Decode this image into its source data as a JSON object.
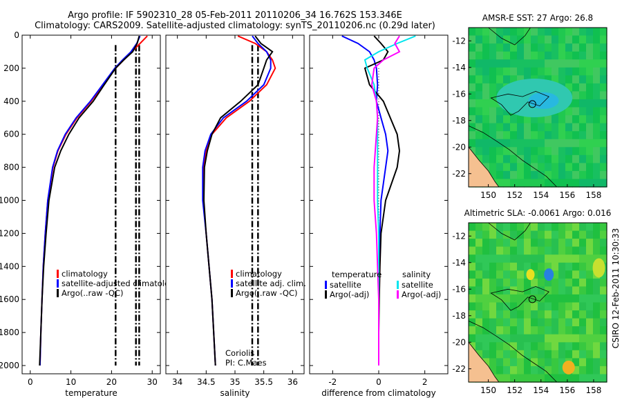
{
  "header": {
    "title_line1": "Argo profile: IF 5902310_28 05-Feb-2011 20110206_34 16.762S 153.346E",
    "title_line2": "Climatology: CARS2009. Satellite-adjusted climatology: synTS_20110206.nc (0.29d later)"
  },
  "colors": {
    "climatology": "#ff0000",
    "satellite": "#0000ff",
    "argo": "#000000",
    "salinity_satellite": "#00e5ee",
    "salinity_argo": "#ff00ff",
    "land": "#f5c090"
  },
  "chart_data": [
    {
      "type": "line",
      "panel": "temperature",
      "xlabel": "temperature",
      "ylabel": "",
      "xlim": [
        -2,
        32
      ],
      "ylim": [
        2050,
        0
      ],
      "xticks": [
        0,
        10,
        20,
        30
      ],
      "yticks": [
        0,
        200,
        400,
        600,
        800,
        1000,
        1200,
        1400,
        1600,
        1800,
        2000
      ],
      "depth": [
        5,
        50,
        100,
        150,
        200,
        300,
        400,
        500,
        600,
        700,
        800,
        1000,
        1200,
        1400,
        1600,
        1800,
        2000
      ],
      "series": [
        {
          "name": "climatology",
          "color": "#ff0000",
          "values": [
            28.8,
            27.0,
            25.0,
            23.0,
            21.0,
            18.0,
            15.0,
            11.5,
            8.8,
            6.8,
            5.6,
            4.3,
            3.7,
            3.2,
            2.9,
            2.6,
            2.4
          ]
        },
        {
          "name": "satellite-adjusted climatology",
          "color": "#0000ff",
          "values": [
            27.0,
            26.2,
            24.8,
            22.7,
            20.8,
            17.8,
            14.8,
            11.3,
            8.6,
            6.7,
            5.5,
            4.3,
            3.7,
            3.2,
            2.9,
            2.6,
            2.4
          ]
        },
        {
          "name": "Argo(..raw -QC)",
          "color": "#000000",
          "values": [
            26.8,
            26.3,
            25.2,
            23.0,
            21.0,
            18.2,
            15.5,
            12.0,
            9.5,
            7.5,
            6.0,
            4.6,
            3.9,
            3.3,
            2.9,
            2.6,
            2.3
          ]
        }
      ],
      "reference_lines": [
        21.0,
        26.0,
        26.8
      ],
      "legend": [
        "climatology",
        "satellite-adjusted climatology",
        "Argo(..raw -QC)"
      ]
    },
    {
      "type": "line",
      "panel": "salinity",
      "xlabel": "salinity",
      "ylabel": "",
      "xlim": [
        33.8,
        36.2
      ],
      "ylim": [
        2050,
        0
      ],
      "xticks": [
        34,
        34.5,
        35,
        35.5,
        36
      ],
      "depth": [
        5,
        50,
        100,
        150,
        200,
        300,
        400,
        500,
        600,
        700,
        800,
        1000,
        1200,
        1400,
        1600,
        1800,
        2000
      ],
      "series": [
        {
          "name": "climatology",
          "color": "#ff0000",
          "values": [
            35.05,
            35.35,
            35.55,
            35.65,
            35.7,
            35.55,
            35.25,
            34.85,
            34.6,
            34.5,
            34.45,
            34.45,
            34.5,
            34.55,
            34.6,
            34.63,
            34.66
          ]
        },
        {
          "name": "satellite adj. clim.",
          "color": "#0000ff",
          "values": [
            35.3,
            35.4,
            35.55,
            35.62,
            35.62,
            35.5,
            35.2,
            34.8,
            34.58,
            34.48,
            34.44,
            34.44,
            34.5,
            34.55,
            34.6,
            34.63,
            34.66
          ]
        },
        {
          "name": "Argo(..raw -QC)",
          "color": "#000000",
          "values": [
            35.35,
            35.45,
            35.65,
            35.55,
            35.5,
            35.4,
            35.1,
            34.75,
            34.6,
            34.52,
            34.47,
            34.46,
            34.5,
            34.55,
            34.6,
            34.63,
            34.66
          ]
        }
      ],
      "reference_lines": [
        35.3,
        35.4
      ],
      "legend": [
        "climatology",
        "satellite adj. clim.",
        "Argo(..raw -QC)"
      ],
      "annotations": [
        "Coriolis",
        "PI: C.Maes"
      ]
    },
    {
      "type": "line",
      "panel": "difference",
      "xlabel": "difference from climatology",
      "ylabel": "",
      "xlim": [
        -3,
        3
      ],
      "ylim": [
        2050,
        0
      ],
      "xticks": [
        -2,
        0,
        2
      ],
      "depth": [
        5,
        50,
        100,
        150,
        200,
        300,
        400,
        500,
        600,
        700,
        800,
        1000,
        1200,
        1400,
        1600,
        1800,
        2000
      ],
      "series": [
        {
          "name": "temperature satellite",
          "color": "#0000ff",
          "values": [
            -1.6,
            -0.9,
            -0.4,
            -0.2,
            -0.1,
            -0.05,
            -0.1,
            0.1,
            0.3,
            0.4,
            0.3,
            0.1,
            0.05,
            0.02,
            0.0,
            0.0,
            0.0
          ]
        },
        {
          "name": "temperature Argo(-adj)",
          "color": "#000000",
          "values": [
            -0.2,
            0.1,
            0.4,
            0.2,
            -0.6,
            -0.4,
            0.2,
            0.5,
            0.8,
            0.9,
            0.8,
            0.3,
            0.1,
            0.05,
            0.02,
            0.0,
            0.0
          ]
        },
        {
          "name": "salinity satellite",
          "color": "#00e5ee",
          "values": [
            1.6,
            0.8,
            0.0,
            -0.6,
            -0.5,
            -0.2,
            -0.1,
            -0.05,
            -0.05,
            -0.05,
            -0.05,
            -0.05,
            0.0,
            0.0,
            0.0,
            0.0,
            0.0
          ]
        },
        {
          "name": "salinity Argo(-adj)",
          "color": "#ff00ff",
          "values": [
            0.9,
            0.7,
            0.9,
            0.2,
            -0.2,
            -0.3,
            -0.1,
            -0.05,
            -0.1,
            -0.15,
            -0.2,
            -0.2,
            -0.1,
            -0.05,
            0.0,
            0.0,
            0.0
          ]
        }
      ],
      "legend_temperature": [
        "temperature",
        "satellite",
        "Argo(-adj)"
      ],
      "legend_salinity": [
        "salinity",
        "satellite",
        "Argo(-adj)"
      ]
    },
    {
      "type": "heatmap",
      "panel": "sst-map",
      "title": "AMSR-E SST: 27 Argo: 26.8",
      "xticks": [
        150,
        152,
        154,
        156,
        158
      ],
      "yticks": [
        -12,
        -14,
        -16,
        -18,
        -20,
        -22
      ],
      "xlim": [
        148.5,
        159.0
      ],
      "ylim": [
        -23.0,
        -11.0
      ],
      "marker": {
        "lon": 153.346,
        "lat": -16.762
      }
    },
    {
      "type": "heatmap",
      "panel": "sla-map",
      "title": "Altimetric SLA: -0.0061 Argo: 0.016",
      "xticks": [
        150,
        152,
        154,
        156,
        158
      ],
      "yticks": [
        -12,
        -14,
        -16,
        -18,
        -20,
        -22
      ],
      "xlim": [
        148.5,
        159.0
      ],
      "ylim": [
        -23.0,
        -11.0
      ],
      "marker": {
        "lon": 153.346,
        "lat": -16.762
      }
    }
  ],
  "footer": {
    "credit": "CSIRO 12-Feb-2011 10:30:33"
  }
}
